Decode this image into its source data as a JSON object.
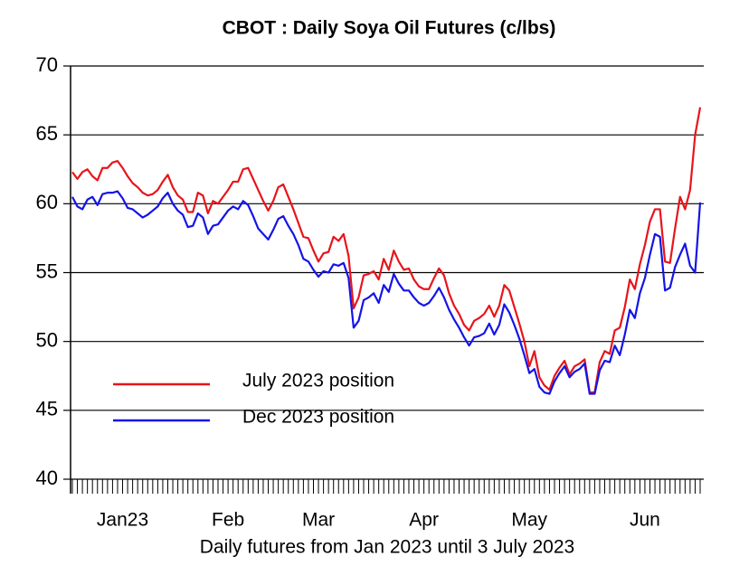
{
  "chart_data": {
    "type": "line",
    "title": "CBOT : Daily Soya Oil Futures (c/lbs)",
    "x_label": "Daily futures from Jan 2023 until 3 July 2023",
    "categories": [
      null,
      null,
      null,
      null,
      null,
      null,
      null,
      null,
      null,
      null,
      "Jan23",
      null,
      null,
      null,
      null,
      null,
      null,
      null,
      null,
      null,
      null,
      null,
      null,
      null,
      null,
      null,
      null,
      null,
      null,
      null,
      null,
      "Feb",
      null,
      null,
      null,
      null,
      null,
      null,
      null,
      null,
      null,
      null,
      null,
      null,
      null,
      null,
      null,
      null,
      null,
      "Mar",
      null,
      null,
      null,
      null,
      null,
      null,
      null,
      null,
      null,
      null,
      null,
      null,
      null,
      null,
      null,
      null,
      null,
      null,
      null,
      null,
      "Apr",
      null,
      null,
      null,
      null,
      null,
      null,
      null,
      null,
      null,
      null,
      null,
      null,
      null,
      null,
      null,
      null,
      null,
      null,
      null,
      null,
      "May",
      null,
      null,
      null,
      null,
      null,
      null,
      null,
      null,
      null,
      null,
      null,
      null,
      null,
      null,
      null,
      null,
      null,
      null,
      null,
      null,
      null,
      null,
      "Jun",
      null,
      null,
      null,
      null,
      null,
      null,
      null,
      null,
      null,
      null,
      null
    ],
    "series": [
      {
        "name": "July 2023 position",
        "color": "#e8141b",
        "values": [
          62.3,
          61.8,
          62.3,
          62.5,
          62.0,
          61.7,
          62.6,
          62.6,
          63.0,
          63.1,
          62.6,
          62.0,
          61.5,
          61.2,
          60.8,
          60.6,
          60.7,
          61.0,
          61.6,
          62.1,
          61.2,
          60.6,
          60.3,
          59.4,
          59.4,
          60.8,
          60.6,
          59.3,
          60.2,
          60.0,
          60.5,
          61.0,
          61.6,
          61.6,
          62.5,
          62.6,
          61.8,
          61.0,
          60.2,
          59.5,
          60.2,
          61.2,
          61.4,
          60.5,
          59.6,
          58.6,
          57.6,
          57.5,
          56.6,
          55.8,
          56.4,
          56.5,
          57.6,
          57.3,
          57.8,
          56.2,
          52.4,
          53.2,
          54.8,
          54.9,
          55.1,
          54.5,
          56.0,
          55.2,
          56.6,
          55.8,
          55.2,
          55.3,
          54.5,
          54.0,
          53.8,
          53.8,
          54.6,
          55.3,
          54.8,
          53.5,
          52.6,
          52.0,
          51.2,
          50.8,
          51.5,
          51.7,
          52.0,
          52.6,
          51.8,
          52.6,
          54.1,
          53.7,
          52.5,
          51.3,
          50.0,
          48.2,
          49.3,
          47.4,
          46.8,
          46.5,
          47.5,
          48.1,
          48.6,
          47.6,
          48.2,
          48.4,
          48.7,
          46.3,
          46.3,
          48.5,
          49.3,
          49.1,
          50.8,
          51.0,
          52.5,
          54.5,
          53.8,
          55.6,
          57.0,
          58.7,
          59.6,
          59.6,
          55.8,
          55.7,
          58.2,
          60.5,
          59.6,
          61.0,
          65.0,
          67.0
        ]
      },
      {
        "name": "Dec 2023 position",
        "color": "#1414e6",
        "values": [
          60.5,
          59.8,
          59.6,
          60.3,
          60.5,
          59.9,
          60.7,
          60.8,
          60.8,
          60.9,
          60.4,
          59.7,
          59.6,
          59.3,
          59.0,
          59.2,
          59.5,
          59.8,
          60.4,
          60.8,
          60.0,
          59.5,
          59.2,
          58.3,
          58.4,
          59.3,
          59.0,
          57.8,
          58.4,
          58.5,
          59.0,
          59.5,
          59.8,
          59.6,
          60.2,
          59.9,
          59.1,
          58.2,
          57.8,
          57.4,
          58.1,
          58.9,
          59.1,
          58.4,
          57.8,
          57.0,
          56.0,
          55.8,
          55.2,
          54.7,
          55.1,
          55.0,
          55.6,
          55.5,
          55.7,
          54.6,
          51.0,
          51.5,
          53.0,
          53.2,
          53.5,
          52.8,
          54.1,
          53.6,
          54.9,
          54.2,
          53.7,
          53.7,
          53.2,
          52.8,
          52.6,
          52.8,
          53.3,
          53.9,
          53.2,
          52.3,
          51.6,
          51.0,
          50.3,
          49.7,
          50.3,
          50.4,
          50.6,
          51.3,
          50.5,
          51.2,
          52.7,
          52.1,
          51.2,
          50.2,
          49.0,
          47.7,
          48.0,
          46.7,
          46.3,
          46.2,
          47.1,
          47.7,
          48.2,
          47.4,
          47.8,
          48.0,
          48.4,
          46.2,
          46.2,
          47.9,
          48.6,
          48.5,
          49.7,
          49.0,
          50.5,
          52.3,
          51.7,
          53.5,
          54.6,
          56.3,
          57.8,
          57.6,
          53.7,
          53.9,
          55.4,
          56.3,
          57.1,
          55.5,
          55.0,
          60.1
        ]
      }
    ],
    "ylim": [
      40,
      70
    ],
    "yticks": [
      40,
      45,
      50,
      55,
      60,
      65,
      70
    ],
    "grid": true,
    "legend": "lower left"
  }
}
